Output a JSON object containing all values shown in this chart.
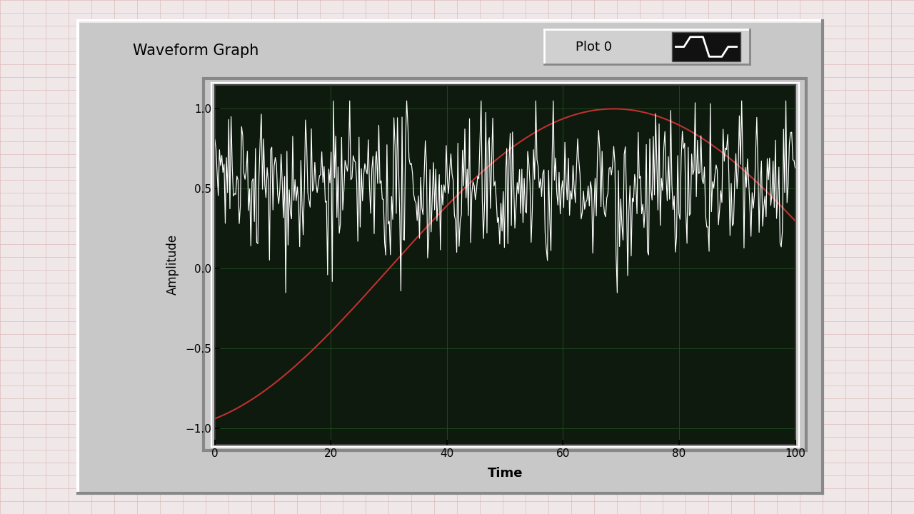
{
  "title": "Waveform Graph",
  "xlabel": "Time",
  "ylabel": "Amplitude",
  "xlim": [
    0,
    100
  ],
  "ylim": [
    -1.1,
    1.15
  ],
  "xticks": [
    0,
    20,
    40,
    60,
    80,
    100
  ],
  "yticks": [
    -1,
    -0.5,
    0,
    0.5,
    1
  ],
  "plot_bg": "#0d1a0d",
  "panel_bg": "#c0c0c0",
  "outer_bg": "#f0e8e8",
  "grid_color": "#1e4a1e",
  "sine_color": "#c03030",
  "noise_color": "#ffffff",
  "legend_label": "Plot 0",
  "noise_seed": 42,
  "n_points": 500,
  "title_fontsize": 15,
  "label_fontsize": 12,
  "tick_fontsize": 11,
  "legend_fontsize": 13,
  "sine_period": 155,
  "sine_phase_shift": 30
}
